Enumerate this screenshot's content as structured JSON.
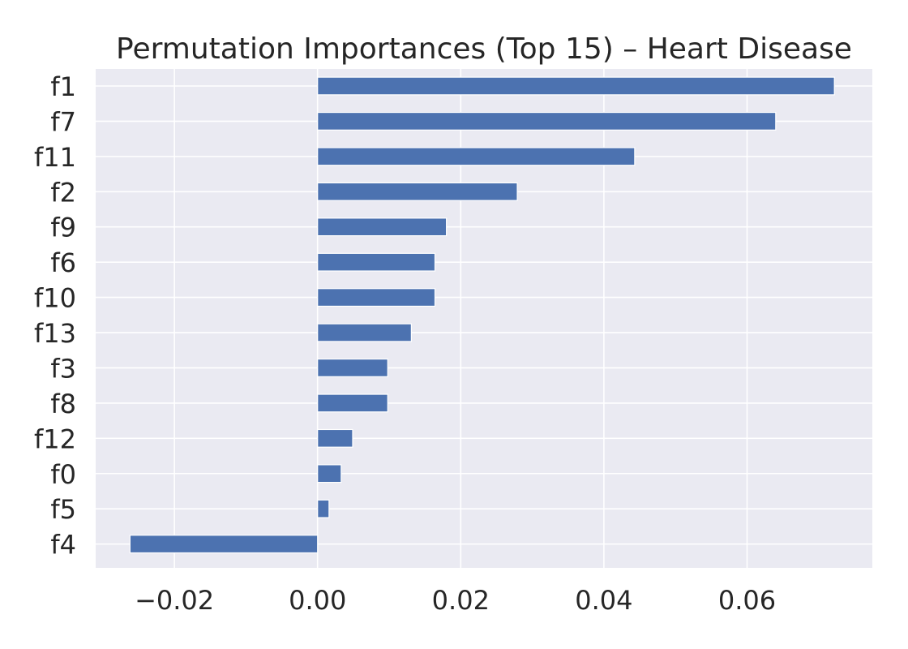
{
  "chart_data": {
    "type": "bar",
    "orientation": "horizontal",
    "title": "Permutation Importances (Top 15) – Heart Disease",
    "xlabel": "",
    "ylabel": "",
    "categories": [
      "f1",
      "f7",
      "f11",
      "f2",
      "f9",
      "f6",
      "f10",
      "f13",
      "f3",
      "f8",
      "f12",
      "f0",
      "f5",
      "f4"
    ],
    "values": [
      0.0722,
      0.064,
      0.0443,
      0.0279,
      0.018,
      0.0164,
      0.0164,
      0.0131,
      0.0098,
      0.0098,
      0.0049,
      0.0033,
      0.0016,
      -0.0262
    ],
    "xlim": [
      -0.031,
      0.0775
    ],
    "xticks": [
      -0.02,
      0.0,
      0.02,
      0.04,
      0.06
    ],
    "xtick_labels": [
      "−0.02",
      "0.00",
      "0.02",
      "0.04",
      "0.06"
    ],
    "grid": true,
    "legend": "none",
    "colors": {
      "bar": "#4c72b0",
      "plot_background": "#eaeaf2",
      "grid": "#ffffff",
      "text": "#262626"
    }
  }
}
